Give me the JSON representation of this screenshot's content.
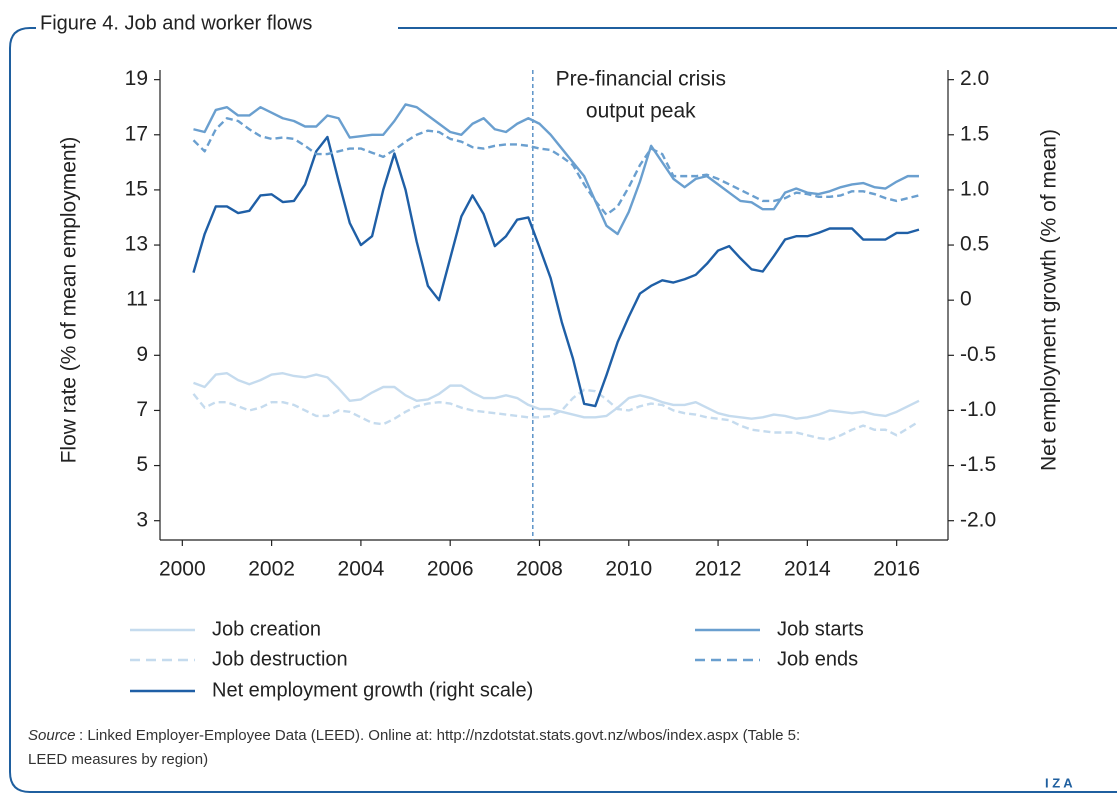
{
  "chart_data": {
    "type": "line",
    "title": "Figure 4. Job and worker flows",
    "ylabel": "Flow rate (% of mean employment)",
    "y2label": "Net employment growth (% of mean)",
    "annotation": {
      "text": [
        "Pre-financial crisis",
        "output peak"
      ],
      "x": 2007.85
    },
    "source_label": "Source",
    "source_text": [
      ": Linked Employer-Employee Data (LEED). Online at: http://nzdotstat.stats.govt.nz/wbos/index.aspx (Table 5:",
      "LEED measures by region)"
    ],
    "logo": "I Z A",
    "xlim": [
      1999.5,
      2017.15
    ],
    "xticks": [
      2000,
      2002,
      2004,
      2006,
      2008,
      2010,
      2012,
      2014,
      2016
    ],
    "ylim": [
      2.3,
      19.35
    ],
    "yticks": [
      3,
      5,
      7,
      9,
      11,
      13,
      15,
      17,
      19
    ],
    "y2lim": [
      -2.175,
      2.0875
    ],
    "y2ticks": [
      {
        "value": 2,
        "label": "2.0"
      },
      1.5,
      {
        "value": 1,
        "label": "1.0"
      },
      0.5,
      0,
      -0.5,
      {
        "value": -1,
        "label": "-1.0"
      },
      -1.5,
      {
        "value": -2,
        "label": "-2.0"
      }
    ],
    "x": [
      2000.25,
      2000.5,
      2000.75,
      2001,
      2001.25,
      2001.5,
      2001.75,
      2002,
      2002.25,
      2002.5,
      2002.75,
      2003,
      2003.25,
      2003.5,
      2003.75,
      2004,
      2004.25,
      2004.5,
      2004.75,
      2005,
      2005.25,
      2005.5,
      2005.75,
      2006,
      2006.25,
      2006.5,
      2006.75,
      2007,
      2007.25,
      2007.5,
      2007.75,
      2008,
      2008.25,
      2008.5,
      2008.75,
      2009,
      2009.25,
      2009.5,
      2009.75,
      2010,
      2010.25,
      2010.5,
      2010.75,
      2011,
      2011.25,
      2011.5,
      2011.75,
      2012,
      2012.25,
      2012.5,
      2012.75,
      2013,
      2013.25,
      2013.5,
      2013.75,
      2014,
      2014.25,
      2014.5,
      2014.75,
      2015,
      2015.25,
      2015.5,
      2015.75,
      2016,
      2016.25,
      2016.5
    ],
    "series": [
      {
        "name": "Job creation",
        "color": "#c5dbee",
        "dash": false,
        "axis": "y",
        "values": [
          8.0,
          7.85,
          8.3,
          8.35,
          8.1,
          7.95,
          8.1,
          8.3,
          8.35,
          8.25,
          8.2,
          8.3,
          8.2,
          7.8,
          7.35,
          7.4,
          7.65,
          7.85,
          7.85,
          7.55,
          7.35,
          7.4,
          7.6,
          7.9,
          7.9,
          7.65,
          7.45,
          7.45,
          7.55,
          7.45,
          7.2,
          7.05,
          7.05,
          6.95,
          6.85,
          6.75,
          6.75,
          6.8,
          7.1,
          7.45,
          7.55,
          7.45,
          7.3,
          7.2,
          7.2,
          7.3,
          7.1,
          6.9,
          6.8,
          6.75,
          6.7,
          6.75,
          6.85,
          6.8,
          6.7,
          6.75,
          6.85,
          7.0,
          6.95,
          6.9,
          6.95,
          6.85,
          6.8,
          6.95,
          7.15,
          7.35
        ]
      },
      {
        "name": "Job destruction",
        "color": "#c5dbee",
        "dash": true,
        "axis": "y",
        "values": [
          7.6,
          7.1,
          7.3,
          7.3,
          7.15,
          7.0,
          7.1,
          7.3,
          7.3,
          7.2,
          7.0,
          6.8,
          6.8,
          7.0,
          6.95,
          6.75,
          6.55,
          6.5,
          6.7,
          6.95,
          7.15,
          7.25,
          7.3,
          7.25,
          7.1,
          7.0,
          6.95,
          6.9,
          6.85,
          6.8,
          6.75,
          6.75,
          6.8,
          7.0,
          7.45,
          7.75,
          7.7,
          7.4,
          7.05,
          7.0,
          7.15,
          7.25,
          7.2,
          7.0,
          6.9,
          6.85,
          6.75,
          6.7,
          6.65,
          6.45,
          6.3,
          6.25,
          6.2,
          6.2,
          6.2,
          6.1,
          6.0,
          5.95,
          6.1,
          6.3,
          6.45,
          6.3,
          6.3,
          6.1,
          6.35,
          6.6
        ]
      },
      {
        "name": "Net employment growth (right scale)",
        "color": "#1f5fa6",
        "dash": false,
        "axis": "y2",
        "values": [
          0.25,
          0.6,
          0.85,
          0.85,
          0.79,
          0.81,
          0.95,
          0.96,
          0.89,
          0.9,
          1.05,
          1.35,
          1.48,
          1.08,
          0.7,
          0.5,
          0.58,
          1.0,
          1.33,
          1.0,
          0.53,
          0.13,
          0.0,
          0.38,
          0.76,
          0.95,
          0.78,
          0.49,
          0.58,
          0.73,
          0.75,
          0.48,
          0.2,
          -0.2,
          -0.53,
          -0.94,
          -0.96,
          -0.68,
          -0.38,
          -0.15,
          0.06,
          0.13,
          0.18,
          0.16,
          0.19,
          0.23,
          0.33,
          0.45,
          0.49,
          0.38,
          0.28,
          0.26,
          0.4,
          0.55,
          0.58,
          0.58,
          0.61,
          0.65,
          0.65,
          0.65,
          0.55,
          0.55,
          0.55,
          0.61,
          0.61,
          0.64
        ]
      },
      {
        "name": "Job starts",
        "color": "#6a9fcf",
        "dash": false,
        "axis": "y",
        "values": [
          17.2,
          17.1,
          17.9,
          18.0,
          17.7,
          17.7,
          18.0,
          17.8,
          17.6,
          17.5,
          17.3,
          17.3,
          17.7,
          17.6,
          16.9,
          16.95,
          17.0,
          17.0,
          17.5,
          18.1,
          18.0,
          17.7,
          17.4,
          17.1,
          17.0,
          17.4,
          17.6,
          17.2,
          17.1,
          17.4,
          17.6,
          17.4,
          17.0,
          16.5,
          16.0,
          15.5,
          14.6,
          13.7,
          13.4,
          14.2,
          15.3,
          16.6,
          16.0,
          15.4,
          15.1,
          15.4,
          15.5,
          15.2,
          14.9,
          14.6,
          14.55,
          14.3,
          14.3,
          14.9,
          15.05,
          14.9,
          14.85,
          14.95,
          15.1,
          15.2,
          15.25,
          15.1,
          15.05,
          15.3,
          15.5,
          15.5
        ]
      },
      {
        "name": "Job ends",
        "color": "#6a9fcf",
        "dash": true,
        "axis": "y",
        "values": [
          16.8,
          16.4,
          17.2,
          17.6,
          17.5,
          17.2,
          16.95,
          16.85,
          16.9,
          16.85,
          16.6,
          16.3,
          16.3,
          16.4,
          16.5,
          16.5,
          16.35,
          16.2,
          16.45,
          16.75,
          17.0,
          17.15,
          17.1,
          16.85,
          16.75,
          16.55,
          16.5,
          16.6,
          16.65,
          16.65,
          16.6,
          16.5,
          16.45,
          16.2,
          15.9,
          15.2,
          14.6,
          14.1,
          14.4,
          15.1,
          15.9,
          16.5,
          16.3,
          15.5,
          15.5,
          15.5,
          15.55,
          15.4,
          15.2,
          15.0,
          14.8,
          14.6,
          14.6,
          14.7,
          14.9,
          14.85,
          14.75,
          14.75,
          14.8,
          14.95,
          14.95,
          14.85,
          14.7,
          14.6,
          14.7,
          14.8
        ]
      }
    ]
  }
}
